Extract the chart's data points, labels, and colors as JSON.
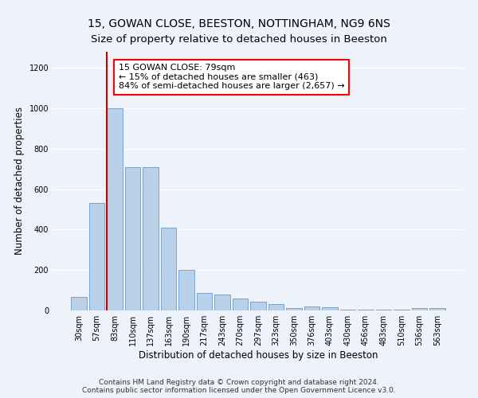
{
  "title": "15, GOWAN CLOSE, BEESTON, NOTTINGHAM, NG9 6NS",
  "subtitle": "Size of property relative to detached houses in Beeston",
  "xlabel": "Distribution of detached houses by size in Beeston",
  "ylabel": "Number of detached properties",
  "categories": [
    "30sqm",
    "57sqm",
    "83sqm",
    "110sqm",
    "137sqm",
    "163sqm",
    "190sqm",
    "217sqm",
    "243sqm",
    "270sqm",
    "297sqm",
    "323sqm",
    "350sqm",
    "376sqm",
    "403sqm",
    "430sqm",
    "456sqm",
    "483sqm",
    "510sqm",
    "536sqm",
    "563sqm"
  ],
  "values": [
    65,
    530,
    1000,
    710,
    710,
    408,
    200,
    85,
    80,
    60,
    45,
    30,
    13,
    18,
    16,
    2,
    2,
    2,
    2,
    10,
    13
  ],
  "bar_color": "#b8d0e8",
  "bar_edge_color": "#6699cc",
  "vline_index": 2,
  "vline_color": "#cc0000",
  "annotation_line1": "15 GOWAN CLOSE: 79sqm",
  "annotation_line2": "← 15% of detached houses are smaller (463)",
  "annotation_line3": "84% of semi-detached houses are larger (2,657) →",
  "ylim": [
    0,
    1280
  ],
  "yticks": [
    0,
    200,
    400,
    600,
    800,
    1000,
    1200
  ],
  "background_color": "#eef2fb",
  "grid_color": "#ffffff",
  "footer": "Contains HM Land Registry data © Crown copyright and database right 2024.\nContains public sector information licensed under the Open Government Licence v3.0.",
  "title_fontsize": 10,
  "subtitle_fontsize": 9.5,
  "xlabel_fontsize": 8.5,
  "ylabel_fontsize": 8.5,
  "tick_fontsize": 7,
  "annotation_fontsize": 8,
  "footer_fontsize": 6.5
}
